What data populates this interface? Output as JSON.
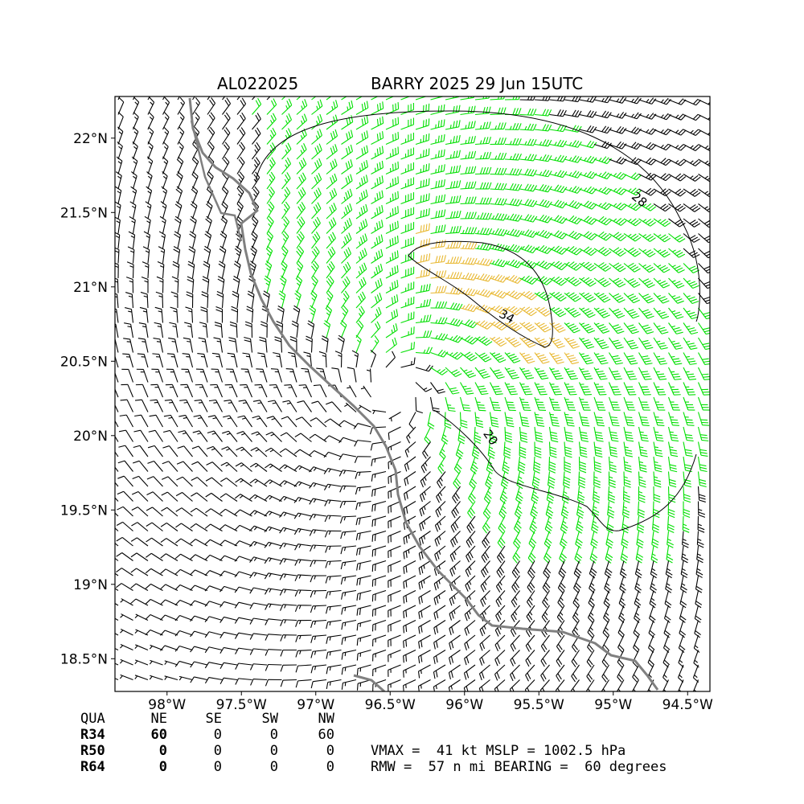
{
  "header": {
    "storm_id": "AL022025",
    "storm_title": "BARRY 2025 29 Jun 15UTC"
  },
  "map": {
    "lon_range": [
      -98.35,
      -94.35
    ],
    "lat_range": [
      18.28,
      22.28
    ],
    "x_ticks": [
      "98°W",
      "97.5°W",
      "97°W",
      "96.5°W",
      "96°W",
      "95.5°W",
      "95°W",
      "94.5°W"
    ],
    "y_ticks": [
      "22°N",
      "21.5°N",
      "21°N",
      "20.5°N",
      "20°N",
      "19.5°N",
      "19°N",
      "18.5°N"
    ],
    "center_lon": -96.45,
    "center_lat": 20.3,
    "contour_labels": [
      "34",
      "20",
      "28"
    ],
    "colors": {
      "barb_default": "#000000",
      "barb_34kt": "#00e000",
      "barb_50kt": "#e8b830",
      "coastline": "#808080"
    }
  },
  "quadrant_table": {
    "header": [
      "QUA",
      "NE",
      "SE",
      "SW",
      "NW"
    ],
    "rows": [
      {
        "label": "R34",
        "values": [
          "60",
          "0",
          "0",
          "60"
        ]
      },
      {
        "label": "R50",
        "values": [
          "0",
          "0",
          "0",
          "0"
        ]
      },
      {
        "label": "R64",
        "values": [
          "0",
          "0",
          "0",
          "0"
        ]
      }
    ]
  },
  "stats": {
    "line1": "VMAX =  41 kt MSLP = 1002.5 hPa",
    "line2": "RMW =  57 n mi BEARING =  60 degrees"
  }
}
